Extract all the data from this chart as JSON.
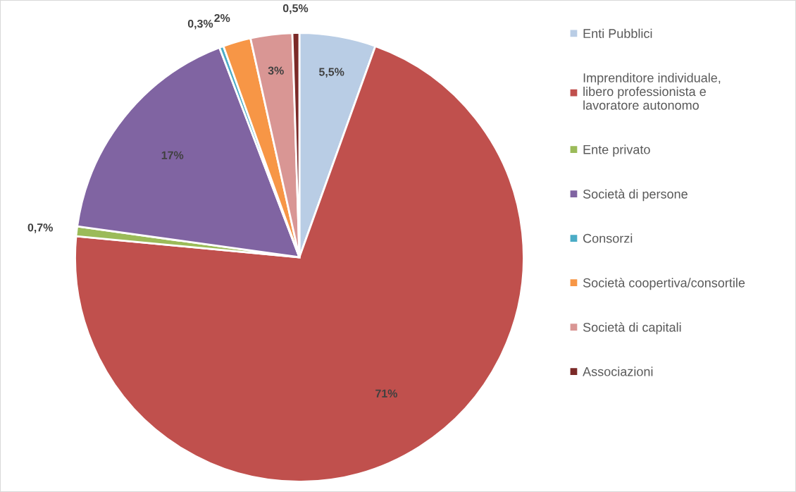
{
  "chart_data": {
    "type": "pie",
    "categories": [
      "Enti Pubblici",
      "Imprenditore individuale,\nlibero professionista e\nlavoratore autonomo",
      "Ente privato",
      "Società di persone",
      "Consorzi",
      "Società coopertiva/consortile",
      "Società di capitali",
      "Associazioni"
    ],
    "values": [
      5.5,
      71,
      0.7,
      17,
      0.3,
      2,
      3,
      0.5
    ],
    "colors": [
      "#b9cde5",
      "#c0504d",
      "#9bbb59",
      "#8064a2",
      "#4bacc6",
      "#f79646",
      "#d99694",
      "#7b2a28"
    ],
    "value_labels": [
      "5,5%",
      "71%",
      "0,7%",
      "17%",
      "0,3%",
      "2%",
      "3%",
      "0,5%"
    ],
    "legend": "right"
  }
}
